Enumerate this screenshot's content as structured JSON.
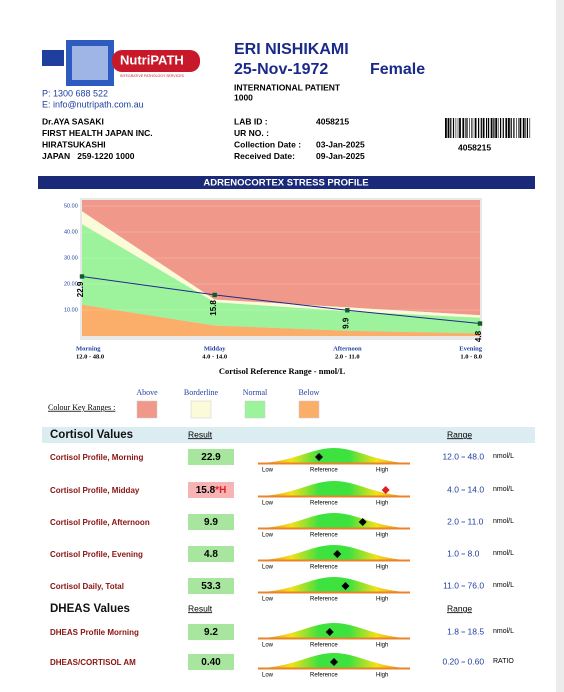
{
  "logo": {
    "name": "NutriPATH",
    "tagline": "INTEGRATIVE PATHOLOGY SERVICES"
  },
  "contact": {
    "phone": "P: 1300 688 522",
    "email": "E: info@nutripath.com.au"
  },
  "patient": {
    "name": "ERI NISHIKAMI",
    "dob": "25-Nov-1972",
    "sex": "Female",
    "category": "INTERNATIONAL PATIENT",
    "number": "1000"
  },
  "doctor": [
    "Dr.AYA SASAKI",
    "FIRST HEALTH JAPAN INC.",
    "HIRATSUKASHI",
    "JAPAN   259-1220 1000"
  ],
  "lab_fields": [
    {
      "label": "LAB ID :",
      "value": "4058215"
    },
    {
      "label": "UR NO. :"
    },
    {
      "label": "Collection Date :",
      "value": "03-Jan-2025"
    },
    {
      "label": "Received Date:",
      "value": "09-Jan-2025"
    }
  ],
  "barcode_number": "4058215",
  "report_title": "ADRENOCORTEX STRESS PROFILE",
  "chart_data": {
    "type": "area",
    "x_label": "Cortisol Reference Range - nmol/L",
    "categories": [
      "Morning",
      "Midday",
      "Afternoon",
      "Evening"
    ],
    "category_ranges": [
      "12.0 - 48.0",
      "4.0 - 14.0",
      "2.0 - 11.0",
      "1.0 - 8.0"
    ],
    "ylim": [
      0,
      50
    ],
    "yticks": [
      {
        "value": 10,
        "label": "10.00"
      },
      {
        "value": 20,
        "label": "20.00"
      },
      {
        "value": 30,
        "label": "30.00"
      },
      {
        "value": 40,
        "label": "40.00"
      },
      {
        "value": 50,
        "label": "50.00"
      }
    ],
    "bands": [
      {
        "name": "Above",
        "color": "#f0998a",
        "from": [
          48,
          14,
          11,
          8
        ]
      },
      {
        "name": "Borderline",
        "color": "#fbfbd9",
        "from": [
          43,
          13,
          9.5,
          7
        ],
        "to": [
          48,
          14,
          11,
          8
        ]
      },
      {
        "name": "Normal",
        "color": "#9cf39c",
        "from": [
          12,
          4,
          2,
          1
        ],
        "to": [
          43,
          13,
          9.5,
          7
        ]
      },
      {
        "name": "Below",
        "color": "#fbad6a",
        "from": [
          0,
          0,
          0,
          0
        ],
        "to": [
          12,
          4,
          2,
          1
        ]
      }
    ],
    "series": [
      {
        "color": "#1f2a8a",
        "values": [
          22.9,
          15.8,
          9.9,
          4.8
        ]
      }
    ]
  },
  "legend_title": "Colour Key Ranges :",
  "gauge_labels": [
    "Low",
    "Reference",
    "High"
  ],
  "sections": [
    {
      "title": "Cortisol Values",
      "result_heading": "Result",
      "range_heading": "Range",
      "rows": [
        {
          "name": "Cortisol Profile, Morning",
          "result": 22.9,
          "range": [
            {
              "value": 12,
              "label": "12.0"
            },
            {
              "value": 48,
              "label": "48.0"
            }
          ],
          "unit": "nmol/L"
        },
        {
          "name": "Cortisol Profile, Midday",
          "result": 15.8,
          "flag": "*H",
          "range": [
            {
              "value": 4,
              "label": "4.0"
            },
            {
              "value": 14,
              "label": "14.0"
            }
          ],
          "unit": "nmol/L"
        },
        {
          "name": "Cortisol Profile, Afternoon",
          "result": 9.9,
          "range": [
            {
              "value": 2,
              "label": "2.0"
            },
            {
              "value": 11,
              "label": "11.0"
            }
          ],
          "unit": "nmol/L"
        },
        {
          "name": "Cortisol Profile, Evening",
          "result": 4.8,
          "range": [
            {
              "value": 1,
              "label": "1.0"
            },
            {
              "value": 8,
              "label": "8.0"
            }
          ],
          "unit": "nmol/L"
        },
        {
          "name": "Cortisol Daily, Total",
          "result": 53.3,
          "range": [
            {
              "value": 11,
              "label": "11.0"
            },
            {
              "value": 76,
              "label": "76.0"
            }
          ],
          "unit": "nmol/L"
        }
      ]
    },
    {
      "title": "DHEAS Values",
      "result_heading": "Result",
      "range_heading": "Range",
      "rows": [
        {
          "name": "DHEAS Profile Morning",
          "result": 9.2,
          "range": [
            1.8,
            18.5
          ],
          "unit": "nmol/L"
        },
        {
          "name": "DHEAS/CORTISOL AM",
          "result": {
            "value": 0.4,
            "label": "0.40"
          },
          "range": [
            {
              "value": 0.2,
              "label": "0.20"
            },
            {
              "value": 0.6,
              "label": "0.60"
            }
          ],
          "unit": "RATIO"
        }
      ]
    }
  ]
}
